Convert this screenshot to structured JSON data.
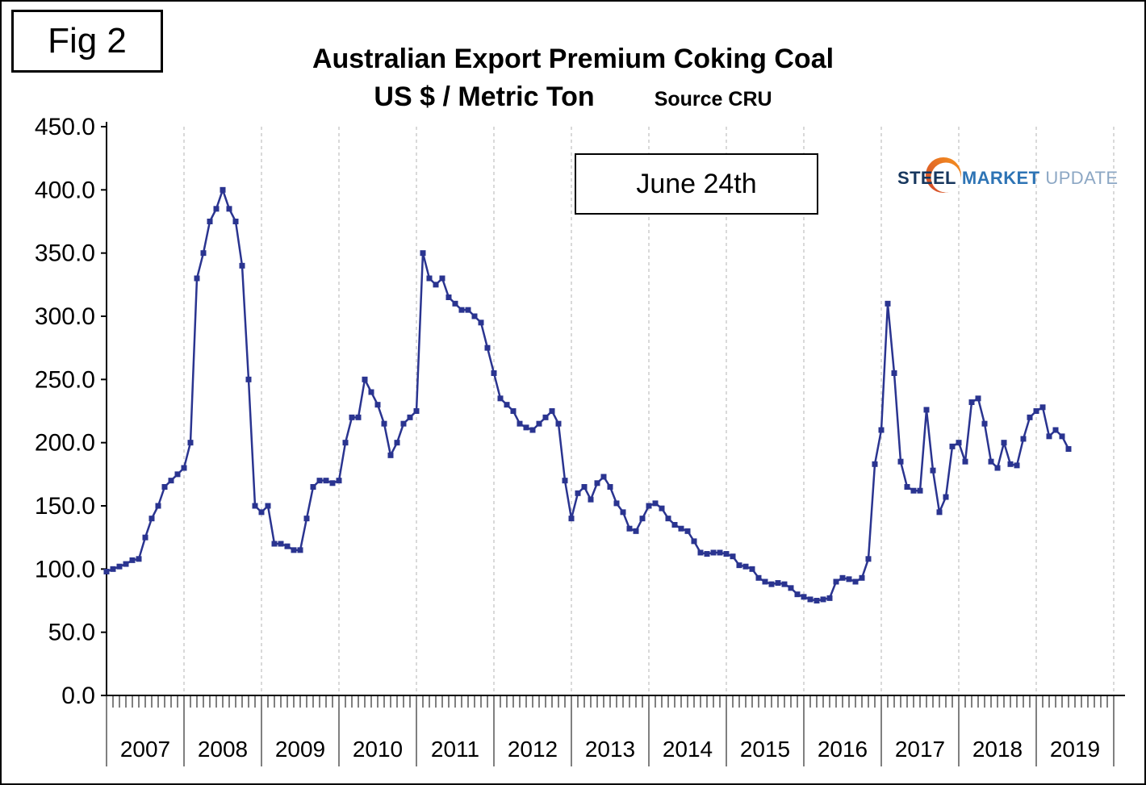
{
  "fig_label": "Fig 2",
  "annotation": {
    "label": "June 24th"
  },
  "logo": {
    "steel": "STEEL",
    "market": "MARKET",
    "update": "UPDATE"
  },
  "chart_data": {
    "type": "line",
    "title": "Australian Export Premium Coking Coal",
    "subtitle": "US $ / Metric Ton",
    "source": "Source CRU",
    "series_name": "Australian export premium coking coal price, monthly",
    "x_start": "2007-01",
    "x_end": "2019-06",
    "x_year_labels": [
      "2007",
      "2008",
      "2009",
      "2010",
      "2011",
      "2012",
      "2013",
      "2014",
      "2015",
      "2016",
      "2017",
      "2018",
      "2019"
    ],
    "x_domain_months": 156,
    "ylim": [
      0,
      450
    ],
    "ytick_step": 50,
    "ytick_labels": [
      "0.0",
      "50.0",
      "100.0",
      "150.0",
      "200.0",
      "250.0",
      "300.0",
      "350.0",
      "400.0",
      "450.0"
    ],
    "grid": {
      "vertical_dashed_per_year": true,
      "horizontal": false,
      "color": "#b3b3b3"
    },
    "line_color": "#2a3490",
    "marker": "square",
    "values": [
      98,
      100,
      102,
      104,
      107,
      108,
      125,
      140,
      150,
      165,
      170,
      175,
      180,
      200,
      330,
      350,
      375,
      385,
      400,
      385,
      375,
      340,
      250,
      150,
      145,
      150,
      120,
      120,
      118,
      115,
      115,
      140,
      165,
      170,
      170,
      168,
      170,
      200,
      220,
      220,
      250,
      240,
      230,
      215,
      190,
      200,
      215,
      220,
      225,
      350,
      330,
      325,
      330,
      315,
      310,
      305,
      305,
      300,
      295,
      275,
      255,
      235,
      230,
      225,
      215,
      212,
      210,
      215,
      220,
      225,
      215,
      170,
      140,
      160,
      165,
      155,
      168,
      173,
      165,
      152,
      145,
      132,
      130,
      140,
      150,
      152,
      148,
      140,
      135,
      132,
      130,
      122,
      113,
      112,
      113,
      113,
      112,
      110,
      103,
      102,
      100,
      93,
      90,
      88,
      89,
      88,
      85,
      80,
      78,
      76,
      75,
      76,
      77,
      90,
      93,
      92,
      90,
      93,
      108,
      183,
      210,
      310,
      255,
      185,
      165,
      162,
      162,
      226,
      178,
      145,
      157,
      197,
      200,
      185,
      232,
      235,
      215,
      185,
      180,
      200,
      183,
      182,
      203,
      220,
      225,
      228,
      205,
      210,
      205,
      195
    ]
  }
}
